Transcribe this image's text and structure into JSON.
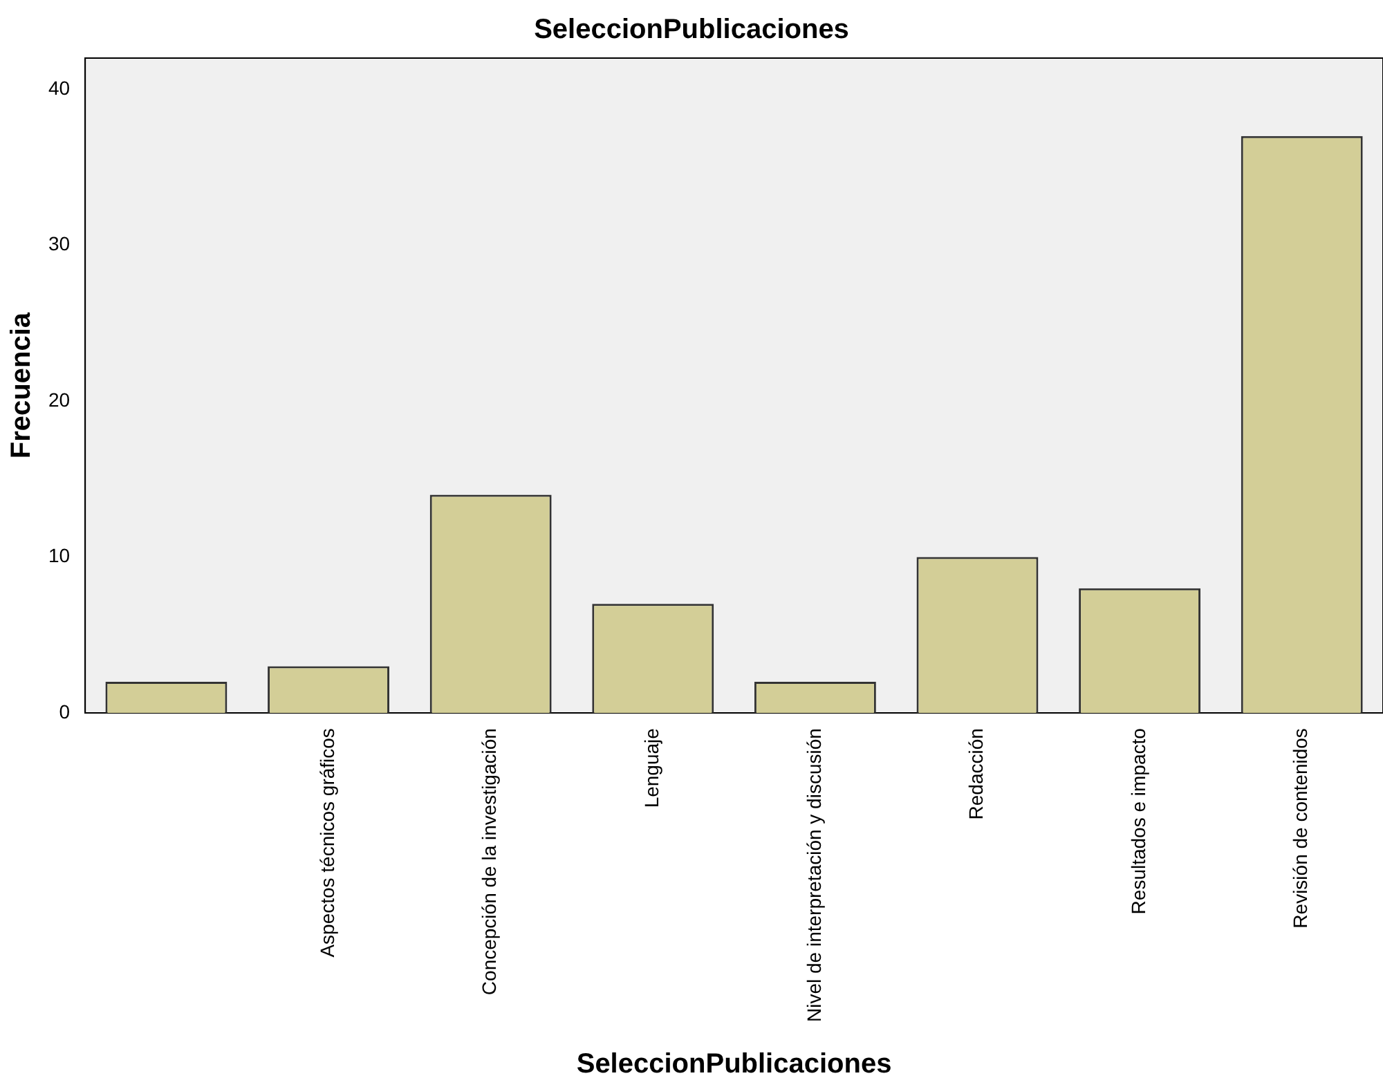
{
  "chart_data": {
    "type": "bar",
    "title": "SeleccionPublicaciones",
    "xlabel": "SeleccionPublicaciones",
    "ylabel": "Frecuencia",
    "categories": [
      null,
      "Aspectos técnicos gráficos",
      "Concepción de la investigación",
      "Lenguaje",
      "Nivel de interpretación y discusión",
      "Redacción",
      "Resultados e impacto",
      "Revisión de contenidos"
    ],
    "values": [
      2,
      3,
      14,
      7,
      2,
      10,
      8,
      37
    ],
    "color": "#d3ce97",
    "ylim": [
      0,
      42
    ],
    "yticks": [
      0,
      10,
      20,
      30,
      40
    ],
    "grid": false,
    "legend": false
  }
}
